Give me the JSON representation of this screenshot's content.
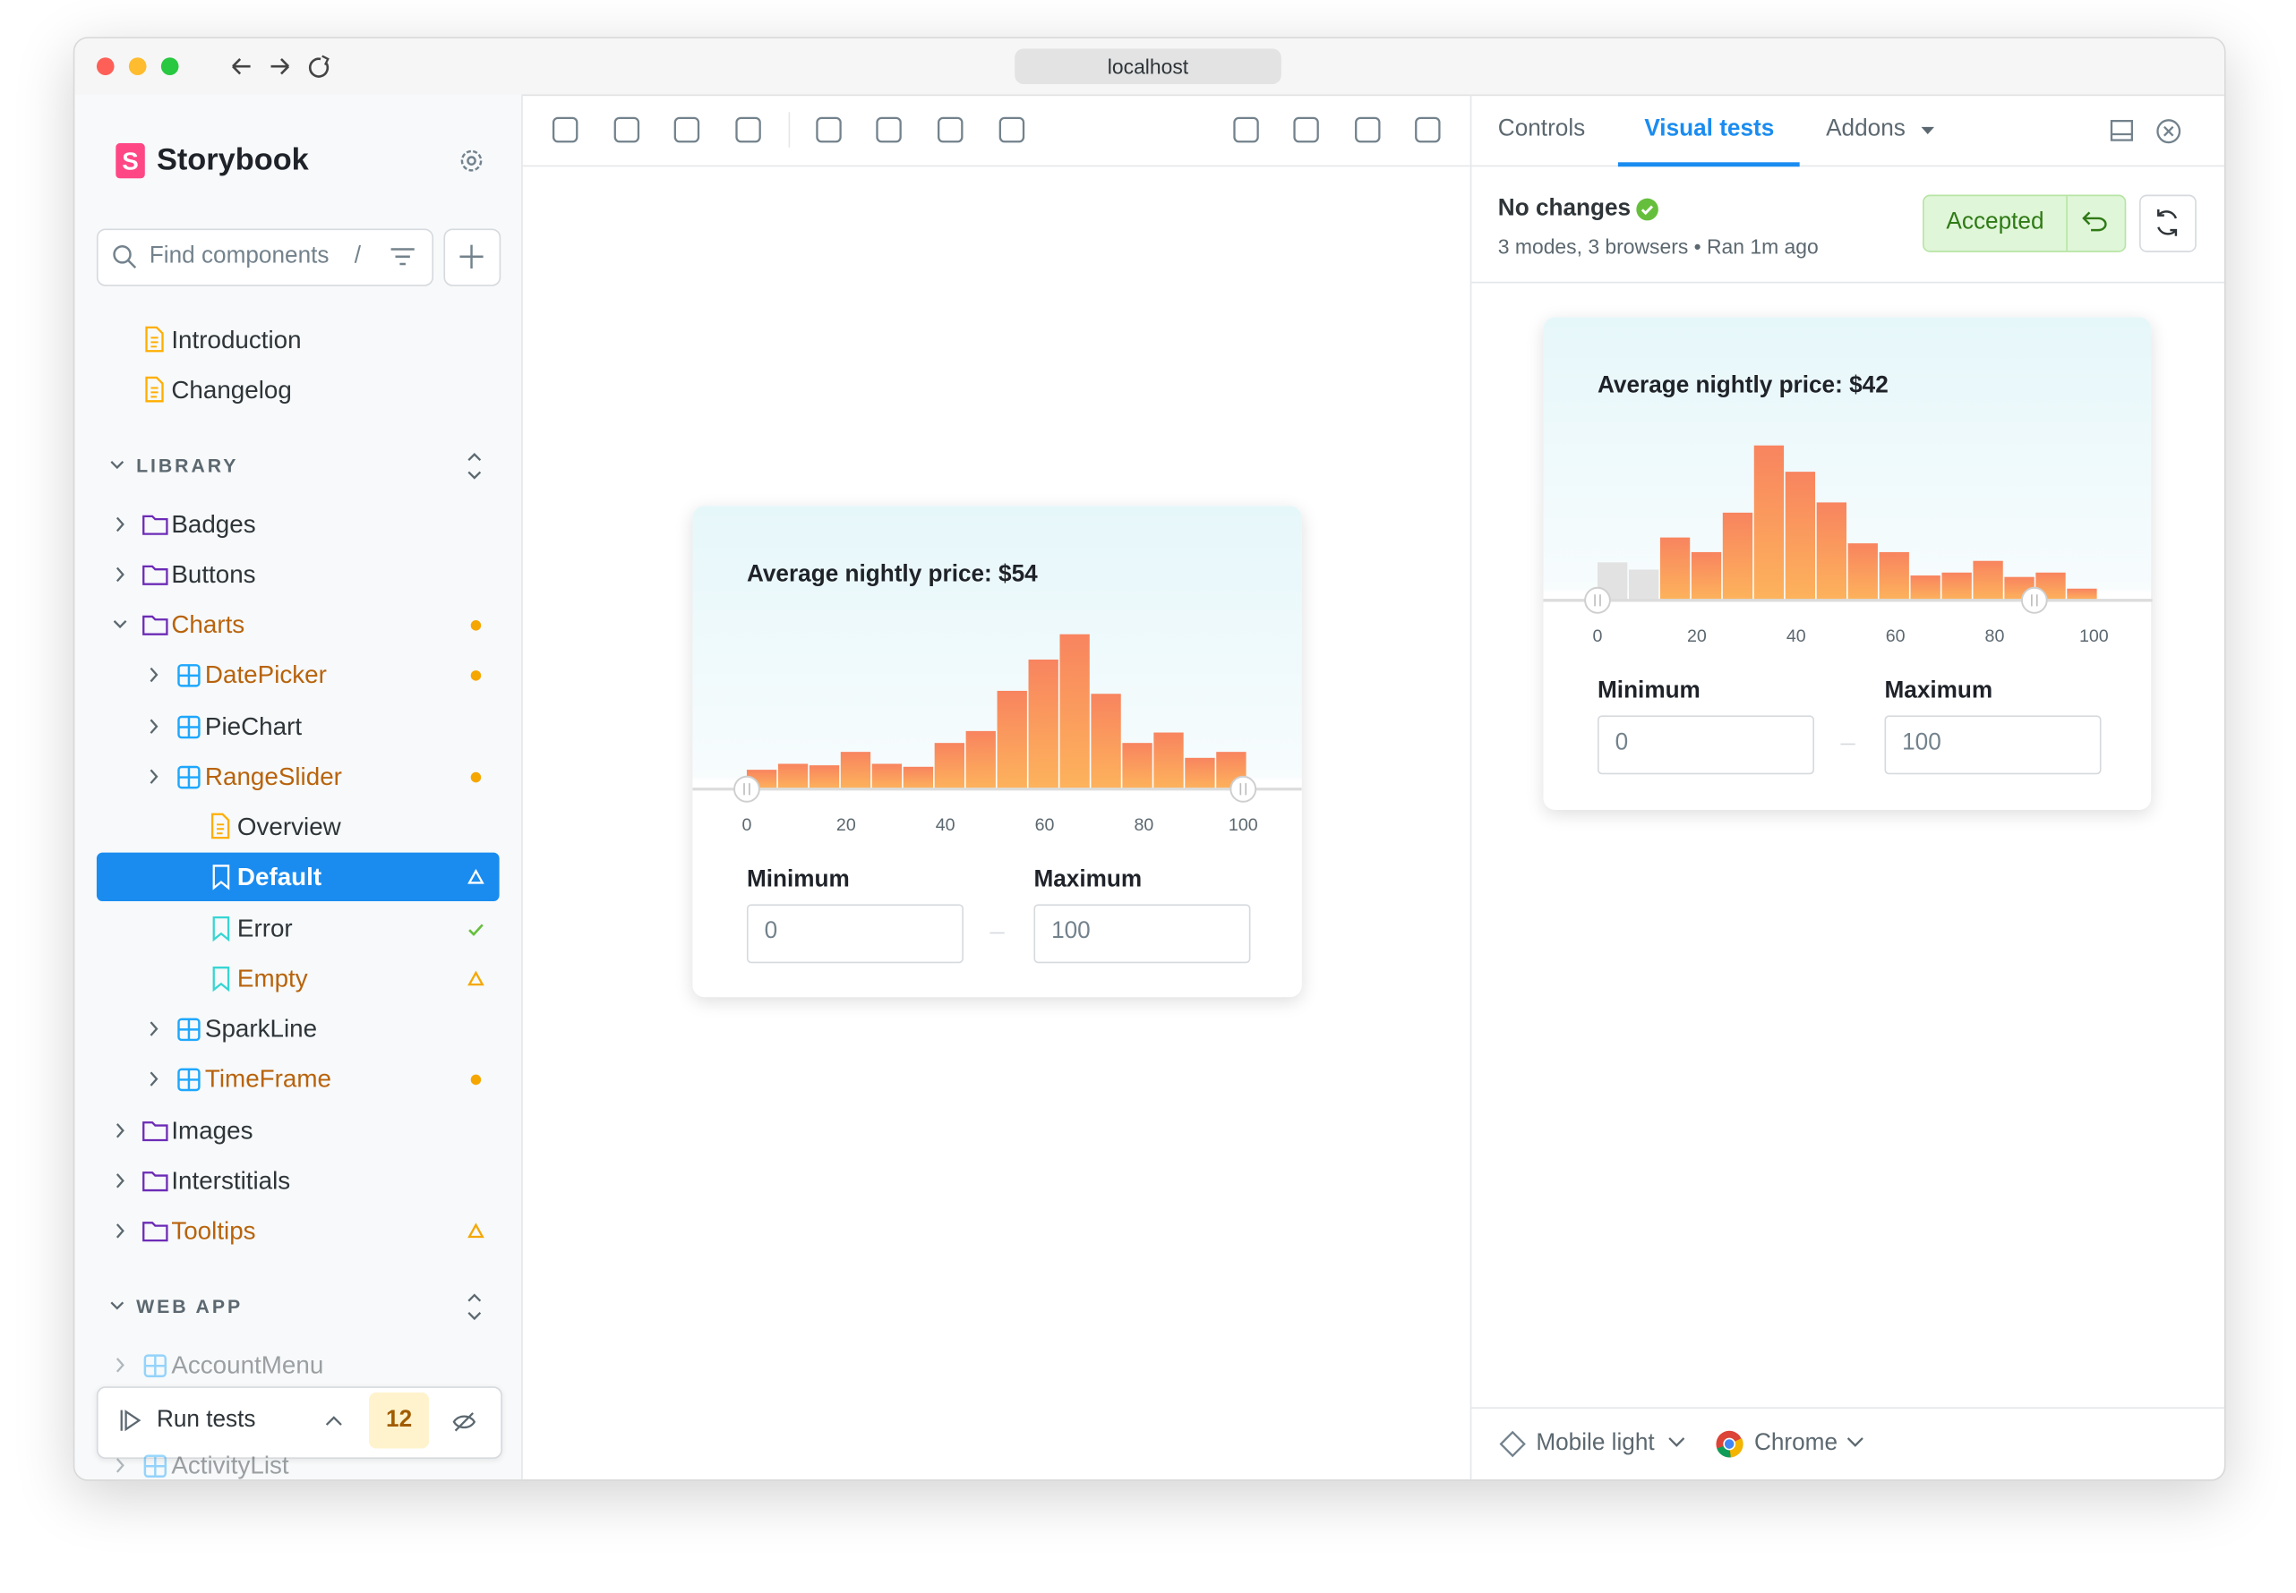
{
  "browser": {
    "url": "localhost"
  },
  "sidebar": {
    "brand": "Storybook",
    "search_placeholder": "Find components",
    "search_shortcut": "/",
    "tree": [
      {
        "label": "Introduction",
        "kind": "doc",
        "level": 0
      },
      {
        "label": "Changelog",
        "kind": "doc",
        "level": 0
      },
      {
        "label": "LIBRARY",
        "kind": "section"
      },
      {
        "label": "Badges",
        "kind": "folder",
        "level": 0
      },
      {
        "label": "Buttons",
        "kind": "folder",
        "level": 0
      },
      {
        "label": "Charts",
        "kind": "folder",
        "level": 0,
        "expanded": true,
        "status": "changed"
      },
      {
        "label": "DatePicker",
        "kind": "component",
        "level": 1,
        "status": "changed"
      },
      {
        "label": "PieChart",
        "kind": "component",
        "level": 1
      },
      {
        "label": "RangeSlider",
        "kind": "component",
        "level": 1,
        "status": "changed"
      },
      {
        "label": "Overview",
        "kind": "doc",
        "level": 2
      },
      {
        "label": "Default",
        "kind": "story",
        "level": 2,
        "status": "warning",
        "selected": true
      },
      {
        "label": "Error",
        "kind": "story",
        "level": 2,
        "status": "passed"
      },
      {
        "label": "Empty",
        "kind": "story",
        "level": 2,
        "status": "warning"
      },
      {
        "label": "SparkLine",
        "kind": "component",
        "level": 1
      },
      {
        "label": "TimeFrame",
        "kind": "component",
        "level": 1,
        "status": "changed"
      },
      {
        "label": "Images",
        "kind": "folder",
        "level": 0
      },
      {
        "label": "Interstitials",
        "kind": "folder",
        "level": 0
      },
      {
        "label": "Tooltips",
        "kind": "folder",
        "level": 0,
        "status": "warning"
      },
      {
        "label": "WEB APP",
        "kind": "section"
      },
      {
        "label": "AccountMenu",
        "kind": "component",
        "level": 0
      },
      {
        "label": "ActivityList",
        "kind": "component",
        "level": 0
      }
    ],
    "run_tests": {
      "label": "Run tests",
      "count": 12
    }
  },
  "preview": {
    "card": {
      "title": "Average nightly price: $54",
      "bars": [
        13,
        17,
        16,
        25,
        17,
        15,
        31,
        39,
        66,
        87,
        104,
        64,
        31,
        38,
        21,
        25
      ],
      "muted_bars": [],
      "ticks": [
        0,
        20,
        40,
        60,
        80,
        100
      ],
      "handles": [
        0,
        100
      ],
      "minimum_label": "Minimum",
      "maximum_label": "Maximum",
      "minimum": 0,
      "maximum": 100
    }
  },
  "panel": {
    "tabs": [
      "Controls",
      "Visual tests",
      "Addons"
    ],
    "active_tab": 1,
    "status": "No changes",
    "details": "3 modes, 3 browsers • Ran 1m ago",
    "accept_button": "Accepted",
    "card": {
      "title": "Average nightly price: $42",
      "bars": [
        26,
        21,
        43,
        33,
        60,
        106,
        88,
        67,
        39,
        33,
        17,
        19,
        27,
        16,
        19,
        8
      ],
      "muted_bars": [
        0,
        1
      ],
      "ticks": [
        0,
        20,
        40,
        60,
        80,
        100
      ],
      "handles": [
        0,
        88
      ],
      "minimum_label": "Minimum",
      "maximum_label": "Maximum",
      "minimum": 0,
      "maximum": 100
    },
    "footer": {
      "mode": "Mobile light",
      "browser": "Chrome"
    }
  }
}
